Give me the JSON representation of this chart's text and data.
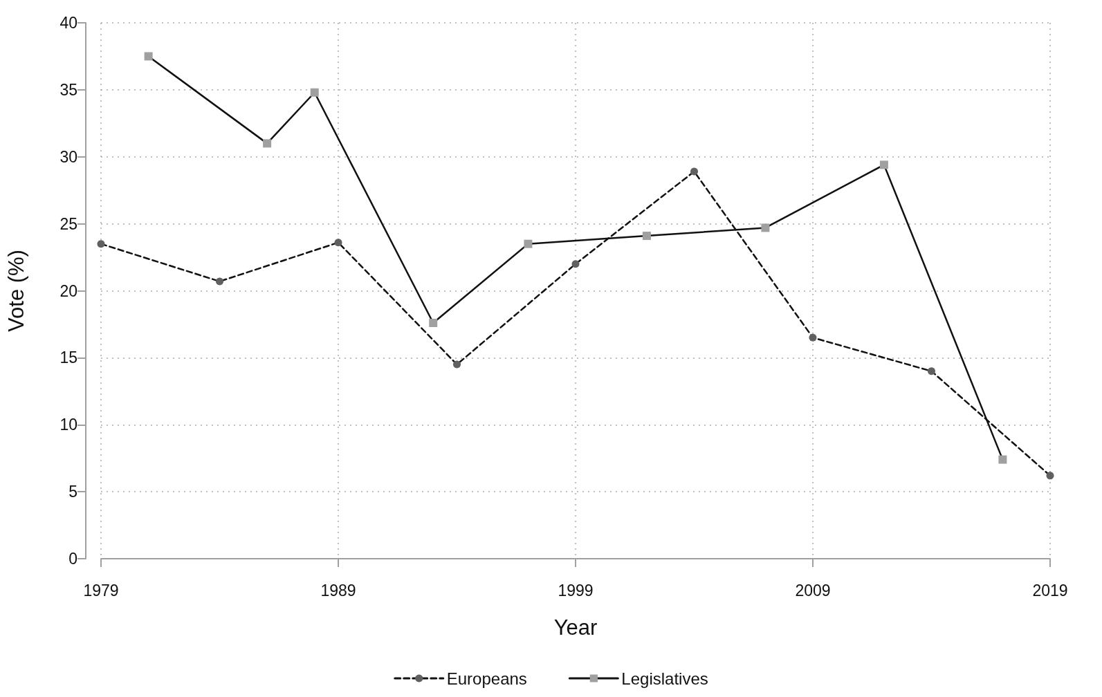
{
  "chart_data": {
    "type": "line",
    "xlabel": "Year",
    "ylabel": "Vote (%)",
    "xlim": [
      1979,
      2019
    ],
    "xticks": [
      1979,
      1989,
      1999,
      2009,
      2019
    ],
    "ylim": [
      0,
      40
    ],
    "yticks": [
      0,
      5,
      10,
      15,
      20,
      25,
      30,
      35,
      40
    ],
    "grid": true,
    "legend": "bottom",
    "series": [
      {
        "name": "Europeans",
        "color": "#606060",
        "marker": "circle",
        "line_style": "dashed",
        "x": [
          1979,
          1984,
          1989,
          1994,
          1999,
          2004,
          2009,
          2014,
          2019
        ],
        "values": [
          23.5,
          20.7,
          23.6,
          14.5,
          22.0,
          28.9,
          16.5,
          14.0,
          6.2
        ]
      },
      {
        "name": "Legislatives",
        "color": "#a0a0a0",
        "marker": "square",
        "line_style": "solid",
        "x": [
          1981,
          1986,
          1988,
          1993,
          1997,
          2002,
          2007,
          2012,
          2017
        ],
        "values": [
          37.5,
          31.0,
          34.8,
          17.6,
          23.5,
          24.1,
          24.7,
          29.4,
          7.4
        ]
      }
    ]
  }
}
